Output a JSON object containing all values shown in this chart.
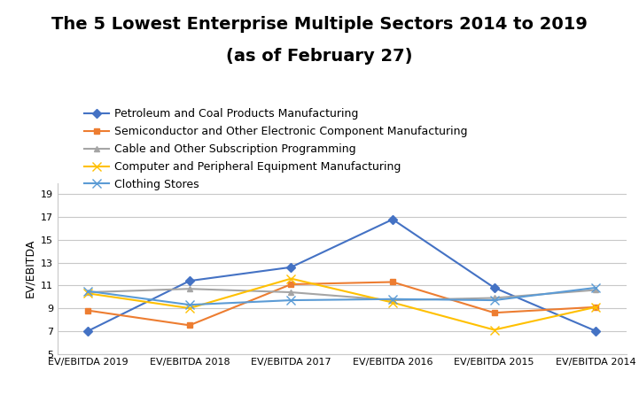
{
  "title_line1": "The 5 Lowest Enterprise Multiple Sectors 2014 to 2019",
  "title_line2": "(as of February 27)",
  "ylabel": "EV/EBITDA",
  "categories": [
    "EV/EBITDA 2019",
    "EV/EBITDA 2018",
    "EV/EBITDA 2017",
    "EV/EBITDA 2016",
    "EV/EBITDA 2015",
    "EV/EBITDA 2014"
  ],
  "series": [
    {
      "label": "Petroleum and Coal Products Manufacturing",
      "values": [
        7.0,
        11.4,
        12.6,
        16.8,
        10.8,
        7.0
      ],
      "color": "#4472C4",
      "marker": "D",
      "markersize": 5
    },
    {
      "label": "Semiconductor and Other Electronic Component Manufacturing",
      "values": [
        8.8,
        7.5,
        11.1,
        11.3,
        8.6,
        9.1
      ],
      "color": "#ED7D31",
      "marker": "s",
      "markersize": 5
    },
    {
      "label": "Cable and Other Subscription Programming",
      "values": [
        10.4,
        10.7,
        10.4,
        9.7,
        9.9,
        10.6
      ],
      "color": "#A5A5A5",
      "marker": "^",
      "markersize": 5
    },
    {
      "label": "Computer and Peripheral Equipment Manufacturing",
      "values": [
        10.3,
        9.0,
        11.6,
        9.5,
        7.1,
        9.1
      ],
      "color": "#FFC000",
      "marker": "x",
      "markersize": 7
    },
    {
      "label": "Clothing Stores",
      "values": [
        10.5,
        9.3,
        9.7,
        9.8,
        9.7,
        10.8
      ],
      "color": "#5B9BD5",
      "marker": "x",
      "markersize": 7
    }
  ],
  "ylim": [
    5,
    20
  ],
  "yticks": [
    5,
    7,
    9,
    11,
    13,
    15,
    17,
    19
  ],
  "title_fontsize": 14,
  "legend_fontsize": 9,
  "axis_label_fontsize": 9,
  "tick_fontsize": 8,
  "background_color": "#FFFFFF",
  "grid_color": "#C8C8C8"
}
